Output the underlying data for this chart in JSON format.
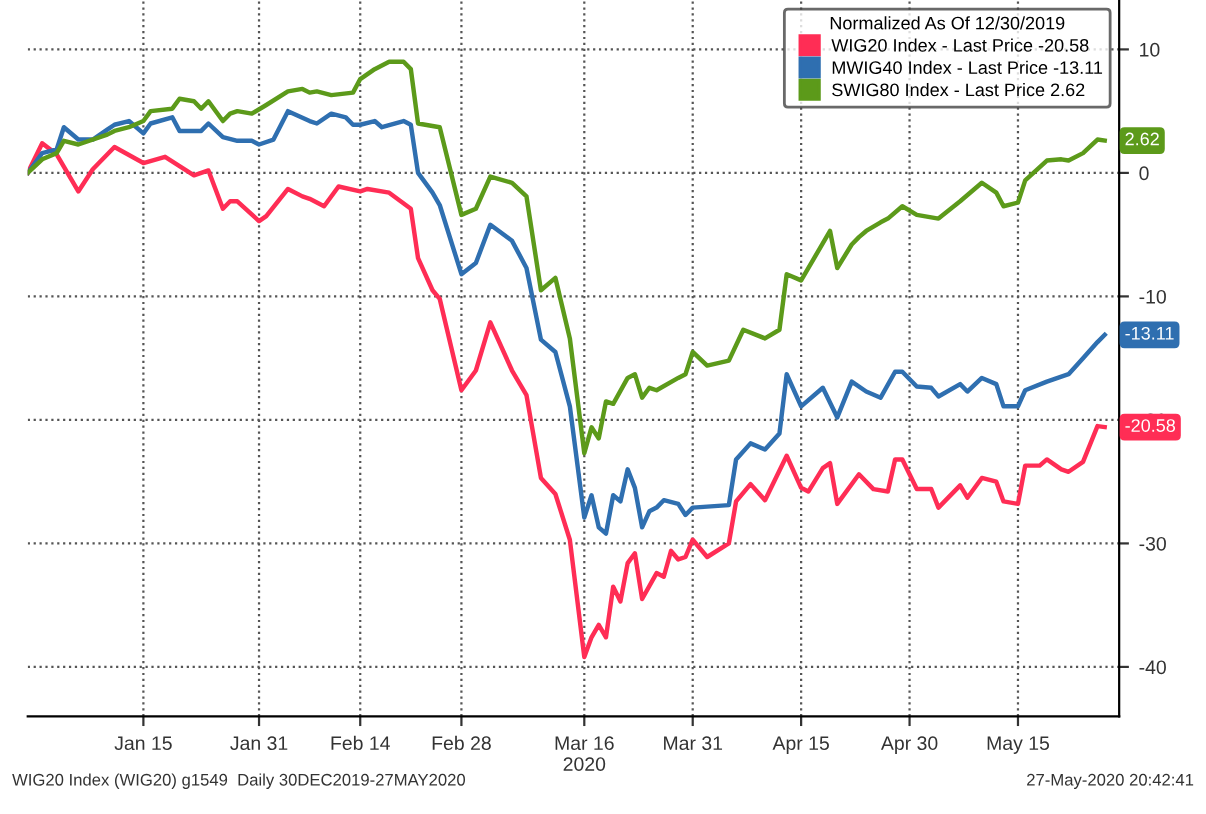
{
  "chart_data": {
    "type": "line",
    "legend_title": "Normalized As Of 12/30/2019",
    "legend": "top right",
    "grid": true,
    "line_style": "solid",
    "xlim": [
      "2019-12-30",
      "2020-05-29"
    ],
    "ylim": [
      -44,
      14
    ],
    "yticks": [
      10,
      0,
      -10,
      -20,
      -30,
      -40
    ],
    "xticks": [
      {
        "value": "2020-01-15",
        "label": "Jan 15"
      },
      {
        "value": "2020-01-31",
        "label": "Jan 31"
      },
      {
        "value": "2020-02-14",
        "label": "Feb 14"
      },
      {
        "value": "2020-02-28",
        "label": "Feb 28"
      },
      {
        "value": "2020-03-16",
        "label": "Mar 16\n2020"
      },
      {
        "value": "2020-03-31",
        "label": "Mar 31"
      },
      {
        "value": "2020-04-15",
        "label": "Apr 15"
      },
      {
        "value": "2020-04-30",
        "label": "Apr 30"
      },
      {
        "value": "2020-05-15",
        "label": "May 15"
      }
    ],
    "series": [
      {
        "name": "WIG20 Index - Last Price -20.58",
        "color": "#ff2d55",
        "x": [
          "2019-12-30",
          "2020-01-01",
          "2020-01-03",
          "2020-01-06",
          "2020-01-08",
          "2020-01-11",
          "2020-01-15",
          "2020-01-18",
          "2020-01-22",
          "2020-01-24",
          "2020-01-26",
          "2020-01-27",
          "2020-01-28",
          "2020-01-31",
          "2020-02-01",
          "2020-02-04",
          "2020-02-06",
          "2020-02-07",
          "2020-02-09",
          "2020-02-11",
          "2020-02-14",
          "2020-02-15",
          "2020-02-18",
          "2020-02-21",
          "2020-02-22",
          "2020-02-24",
          "2020-02-25",
          "2020-02-28",
          "2020-03-01",
          "2020-03-03",
          "2020-03-06",
          "2020-03-08",
          "2020-03-10",
          "2020-03-12",
          "2020-03-14",
          "2020-03-16",
          "2020-03-17",
          "2020-03-18",
          "2020-03-19",
          "2020-03-20",
          "2020-03-21",
          "2020-03-22",
          "2020-03-23",
          "2020-03-24",
          "2020-03-26",
          "2020-03-27",
          "2020-03-28",
          "2020-03-29",
          "2020-03-30",
          "2020-03-31",
          "2020-04-02",
          "2020-04-05",
          "2020-04-06",
          "2020-04-08",
          "2020-04-10",
          "2020-04-13",
          "2020-04-15",
          "2020-04-16",
          "2020-04-18",
          "2020-04-19",
          "2020-04-20",
          "2020-04-23",
          "2020-04-25",
          "2020-04-27",
          "2020-04-28",
          "2020-04-29",
          "2020-05-01",
          "2020-05-03",
          "2020-05-04",
          "2020-05-07",
          "2020-05-08",
          "2020-05-10",
          "2020-05-12",
          "2020-05-13",
          "2020-05-15",
          "2020-05-16",
          "2020-05-18",
          "2020-05-19",
          "2020-05-21",
          "2020-05-22",
          "2020-05-24",
          "2020-05-26",
          "2020-05-27"
        ],
        "values": [
          0,
          2.4,
          1.5,
          -1.5,
          0.3,
          2.1,
          0.8,
          1.3,
          -0.2,
          0.2,
          -2.9,
          -2.3,
          -2.3,
          -3.9,
          -3.5,
          -1.3,
          -1.9,
          -2.1,
          -2.7,
          -1.1,
          -1.5,
          -1.3,
          -1.6,
          -2.9,
          -6.9,
          -9.5,
          -10.2,
          -17.6,
          -16,
          -12.1,
          -16,
          -18,
          -24.7,
          -26,
          -29.7,
          -39.2,
          -37.6,
          -36.6,
          -37.6,
          -33.5,
          -34.7,
          -31.6,
          -30.8,
          -34.5,
          -32.4,
          -32.7,
          -30.6,
          -31.3,
          -31.1,
          -29.7,
          -31.1,
          -30,
          -26.6,
          -25.2,
          -26.5,
          -22.9,
          -25.5,
          -25.8,
          -23.9,
          -23.5,
          -26.8,
          -24.4,
          -25.6,
          -25.8,
          -23.2,
          -23.2,
          -25.6,
          -25.6,
          -27.1,
          -25.3,
          -26.3,
          -24.7,
          -25,
          -26.6,
          -26.8,
          -23.7,
          -23.7,
          -23.2,
          -24,
          -24.2,
          -23.4,
          -20.5,
          -20.58
        ]
      },
      {
        "name": "MWIG40 Index - Last Price -13.11",
        "color": "#2f6fb0",
        "x": [
          "2019-12-30",
          "2020-01-01",
          "2020-01-03",
          "2020-01-04",
          "2020-01-06",
          "2020-01-08",
          "2020-01-10",
          "2020-01-11",
          "2020-01-13",
          "2020-01-15",
          "2020-01-16",
          "2020-01-19",
          "2020-01-20",
          "2020-01-23",
          "2020-01-24",
          "2020-01-26",
          "2020-01-28",
          "2020-01-30",
          "2020-01-31",
          "2020-02-02",
          "2020-02-04",
          "2020-02-07",
          "2020-02-08",
          "2020-02-10",
          "2020-02-12",
          "2020-02-13",
          "2020-02-14",
          "2020-02-16",
          "2020-02-17",
          "2020-02-20",
          "2020-02-21",
          "2020-02-22",
          "2020-02-24",
          "2020-02-25",
          "2020-02-28",
          "2020-03-01",
          "2020-03-03",
          "2020-03-06",
          "2020-03-08",
          "2020-03-10",
          "2020-03-12",
          "2020-03-14",
          "2020-03-16",
          "2020-03-17",
          "2020-03-18",
          "2020-03-19",
          "2020-03-20",
          "2020-03-21",
          "2020-03-22",
          "2020-03-23",
          "2020-03-24",
          "2020-03-25",
          "2020-03-26",
          "2020-03-27",
          "2020-03-29",
          "2020-03-30",
          "2020-03-31",
          "2020-04-05",
          "2020-04-06",
          "2020-04-08",
          "2020-04-10",
          "2020-04-12",
          "2020-04-13",
          "2020-04-15",
          "2020-04-18",
          "2020-04-20",
          "2020-04-22",
          "2020-04-24",
          "2020-04-26",
          "2020-04-28",
          "2020-04-29",
          "2020-05-01",
          "2020-05-03",
          "2020-05-04",
          "2020-05-07",
          "2020-05-08",
          "2020-05-10",
          "2020-05-12",
          "2020-05-13",
          "2020-05-15",
          "2020-05-16",
          "2020-05-19",
          "2020-05-22",
          "2020-05-24",
          "2020-05-26",
          "2020-05-27"
        ],
        "values": [
          0,
          1.6,
          1.9,
          3.7,
          2.7,
          2.7,
          3.5,
          3.9,
          4.2,
          3.2,
          4,
          4.5,
          3.4,
          3.4,
          4,
          2.9,
          2.6,
          2.6,
          2.3,
          2.7,
          5,
          4.2,
          4,
          4.8,
          4.5,
          3.9,
          3.9,
          4.2,
          3.7,
          4.2,
          3.9,
          0,
          -1.6,
          -2.6,
          -8.2,
          -7.3,
          -4.2,
          -5.5,
          -7.7,
          -13.5,
          -14.5,
          -18.9,
          -27.9,
          -26.1,
          -28.7,
          -29.2,
          -26.1,
          -26.6,
          -24,
          -25.5,
          -28.7,
          -27.4,
          -27.1,
          -26.5,
          -26.8,
          -27.7,
          -27.1,
          -26.9,
          -23.2,
          -21.9,
          -22.4,
          -21.1,
          -16.3,
          -18.9,
          -17.4,
          -19.8,
          -16.9,
          -17.7,
          -18.2,
          -16.1,
          -16.1,
          -17.3,
          -17.4,
          -18.1,
          -17.1,
          -17.7,
          -16.6,
          -17.1,
          -18.9,
          -18.9,
          -17.6,
          -16.9,
          -16.3,
          -15,
          -13.7,
          -13.11
        ]
      },
      {
        "name": "SWIG80 Index - Last Price 2.62",
        "color": "#5c9a1a",
        "x": [
          "2019-12-30",
          "2020-01-01",
          "2020-01-03",
          "2020-01-04",
          "2020-01-06",
          "2020-01-10",
          "2020-01-11",
          "2020-01-13",
          "2020-01-15",
          "2020-01-16",
          "2020-01-19",
          "2020-01-20",
          "2020-01-22",
          "2020-01-23",
          "2020-01-24",
          "2020-01-26",
          "2020-01-27",
          "2020-01-28",
          "2020-01-30",
          "2020-02-01",
          "2020-02-04",
          "2020-02-06",
          "2020-02-07",
          "2020-02-08",
          "2020-02-10",
          "2020-02-13",
          "2020-02-14",
          "2020-02-16",
          "2020-02-18",
          "2020-02-20",
          "2020-02-21",
          "2020-02-22",
          "2020-02-25",
          "2020-02-28",
          "2020-03-01",
          "2020-03-03",
          "2020-03-06",
          "2020-03-08",
          "2020-03-10",
          "2020-03-12",
          "2020-03-14",
          "2020-03-16",
          "2020-03-17",
          "2020-03-18",
          "2020-03-19",
          "2020-03-20",
          "2020-03-22",
          "2020-03-23",
          "2020-03-24",
          "2020-03-25",
          "2020-03-26",
          "2020-03-29",
          "2020-03-30",
          "2020-03-31",
          "2020-04-02",
          "2020-04-05",
          "2020-04-07",
          "2020-04-10",
          "2020-04-12",
          "2020-04-13",
          "2020-04-15",
          "2020-04-19",
          "2020-04-20",
          "2020-04-22",
          "2020-04-23",
          "2020-04-24",
          "2020-04-26",
          "2020-04-27",
          "2020-04-29",
          "2020-05-01",
          "2020-05-04",
          "2020-05-07",
          "2020-05-10",
          "2020-05-12",
          "2020-05-13",
          "2020-05-15",
          "2020-05-16",
          "2020-05-19",
          "2020-05-21",
          "2020-05-22",
          "2020-05-24",
          "2020-05-26",
          "2020-05-27"
        ],
        "values": [
          0,
          1.1,
          1.6,
          2.6,
          2.3,
          3.1,
          3.4,
          3.7,
          4.2,
          5,
          5.2,
          6,
          5.8,
          5.2,
          5.8,
          4.2,
          4.8,
          5,
          4.8,
          5.5,
          6.6,
          6.8,
          6.5,
          6.6,
          6.3,
          6.5,
          7.6,
          8.4,
          9,
          9,
          8.4,
          4,
          3.7,
          -3.4,
          -2.9,
          -0.3,
          -0.8,
          -1.9,
          -9.5,
          -8.5,
          -13.4,
          -22.7,
          -20.6,
          -21.5,
          -18.5,
          -18.7,
          -16.6,
          -16.3,
          -18.2,
          -17.4,
          -17.6,
          -16.6,
          -16.3,
          -14.5,
          -15.6,
          -15.2,
          -12.7,
          -13.4,
          -12.7,
          -8.2,
          -8.7,
          -4.7,
          -7.7,
          -5.8,
          -5.2,
          -4.7,
          -4,
          -3.7,
          -2.7,
          -3.4,
          -3.7,
          -2.3,
          -0.8,
          -1.6,
          -2.7,
          -2.4,
          -0.6,
          1,
          1.1,
          1,
          1.6,
          2.7,
          2.62
        ]
      }
    ],
    "annotations": [
      {
        "text": "2.62",
        "x": "2020-05-27",
        "y": 2.62
      },
      {
        "text": "-13.11",
        "x": "2020-05-27",
        "y": -13.11
      },
      {
        "text": "-20.58",
        "x": "2020-05-27",
        "y": -20.58
      },
      "WIG20 Index (WIG20) g1549  Daily 30DEC2019-27MAY2020",
      "27-May-2020 20:42:41"
    ]
  }
}
